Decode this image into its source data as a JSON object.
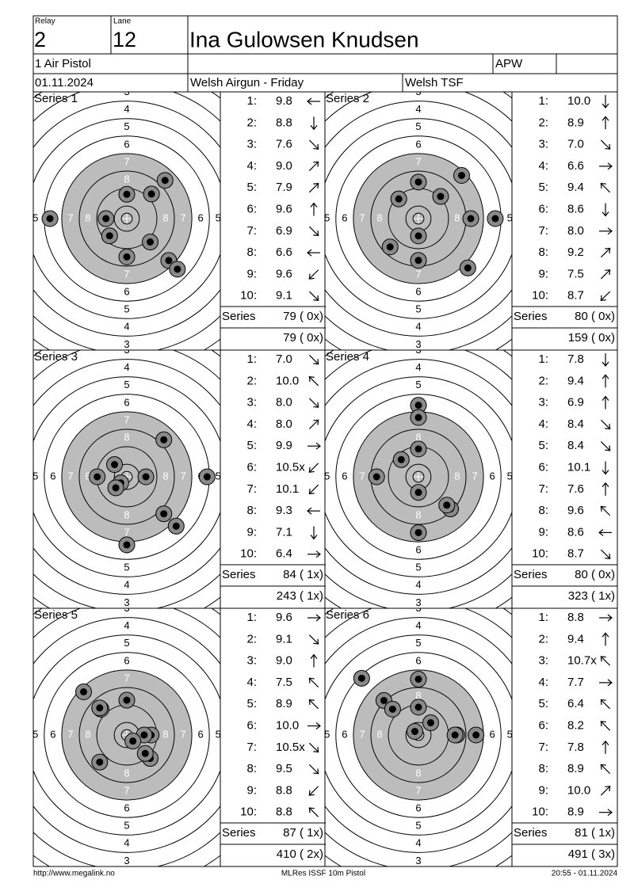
{
  "header": {
    "relay_label": "Relay",
    "relay": "2",
    "lane_label": "Lane",
    "lane": "12",
    "name": "Ina Gulowsen Knudsen",
    "event": "1 Air Pistol",
    "class": "APW",
    "date": "01.11.2024",
    "match": "Welsh Airgun - Friday",
    "club": "Welsh TSF"
  },
  "ring_labels": [
    "3",
    "4",
    "5",
    "6",
    "7",
    "8"
  ],
  "series_label": "Series",
  "series": [
    {
      "title": "Series 1",
      "total": "79 ( 0x)",
      "cumulative": "79 ( 0x)",
      "shots": [
        {
          "no": "1:",
          "score": "9.8",
          "direction": "W"
        },
        {
          "no": "2:",
          "score": "8.8",
          "direction": "S"
        },
        {
          "no": "3:",
          "score": "7.6",
          "direction": "SE"
        },
        {
          "no": "4:",
          "score": "9.0",
          "direction": "NE"
        },
        {
          "no": "5:",
          "score": "7.9",
          "direction": "NE"
        },
        {
          "no": "6:",
          "score": "9.6",
          "direction": "N"
        },
        {
          "no": "7:",
          "score": "6.9",
          "direction": "SE"
        },
        {
          "no": "8:",
          "score": "6.6",
          "direction": "W"
        },
        {
          "no": "9:",
          "score": "9.6",
          "direction": "SW"
        },
        {
          "no": "10:",
          "score": "9.1",
          "direction": "SE"
        }
      ]
    },
    {
      "title": "Series 2",
      "total": "80 ( 0x)",
      "cumulative": "159 ( 0x)",
      "shots": [
        {
          "no": "1:",
          "score": "10.0",
          "direction": "S"
        },
        {
          "no": "2:",
          "score": "8.9",
          "direction": "N"
        },
        {
          "no": "3:",
          "score": "7.0",
          "direction": "SE"
        },
        {
          "no": "4:",
          "score": "6.6",
          "direction": "E"
        },
        {
          "no": "5:",
          "score": "9.4",
          "direction": "NW"
        },
        {
          "no": "6:",
          "score": "8.6",
          "direction": "S"
        },
        {
          "no": "7:",
          "score": "8.0",
          "direction": "E"
        },
        {
          "no": "8:",
          "score": "9.2",
          "direction": "NE"
        },
        {
          "no": "9:",
          "score": "7.5",
          "direction": "NE"
        },
        {
          "no": "10:",
          "score": "8.7",
          "direction": "SW"
        }
      ]
    },
    {
      "title": "Series 3",
      "total": "84 ( 1x)",
      "cumulative": "243 ( 1x)",
      "shots": [
        {
          "no": "1:",
          "score": "7.0",
          "direction": "SE"
        },
        {
          "no": "2:",
          "score": "10.0",
          "direction": "NW"
        },
        {
          "no": "3:",
          "score": "8.0",
          "direction": "SE"
        },
        {
          "no": "4:",
          "score": "8.0",
          "direction": "NE"
        },
        {
          "no": "5:",
          "score": "9.9",
          "direction": "E"
        },
        {
          "no": "6:",
          "score": "10.5x",
          "direction": "SW"
        },
        {
          "no": "7:",
          "score": "10.1",
          "direction": "SW"
        },
        {
          "no": "8:",
          "score": "9.3",
          "direction": "W"
        },
        {
          "no": "9:",
          "score": "7.1",
          "direction": "S"
        },
        {
          "no": "10:",
          "score": "6.4",
          "direction": "E"
        }
      ]
    },
    {
      "title": "Series 4",
      "total": "80 ( 0x)",
      "cumulative": "323 ( 1x)",
      "shots": [
        {
          "no": "1:",
          "score": "7.8",
          "direction": "S"
        },
        {
          "no": "2:",
          "score": "9.4",
          "direction": "N"
        },
        {
          "no": "3:",
          "score": "6.9",
          "direction": "N"
        },
        {
          "no": "4:",
          "score": "8.4",
          "direction": "SE"
        },
        {
          "no": "5:",
          "score": "8.4",
          "direction": "SE"
        },
        {
          "no": "6:",
          "score": "10.1",
          "direction": "S"
        },
        {
          "no": "7:",
          "score": "7.6",
          "direction": "N"
        },
        {
          "no": "8:",
          "score": "9.6",
          "direction": "NW"
        },
        {
          "no": "9:",
          "score": "8.6",
          "direction": "W"
        },
        {
          "no": "10:",
          "score": "8.7",
          "direction": "SE"
        }
      ]
    },
    {
      "title": "Series 5",
      "total": "87 ( 1x)",
      "cumulative": "410 ( 2x)",
      "shots": [
        {
          "no": "1:",
          "score": "9.6",
          "direction": "E"
        },
        {
          "no": "2:",
          "score": "9.1",
          "direction": "SE"
        },
        {
          "no": "3:",
          "score": "9.0",
          "direction": "N"
        },
        {
          "no": "4:",
          "score": "7.5",
          "direction": "NW"
        },
        {
          "no": "5:",
          "score": "8.9",
          "direction": "NW"
        },
        {
          "no": "6:",
          "score": "10.0",
          "direction": "E"
        },
        {
          "no": "7:",
          "score": "10.5x",
          "direction": "SE"
        },
        {
          "no": "8:",
          "score": "9.5",
          "direction": "SE"
        },
        {
          "no": "9:",
          "score": "8.8",
          "direction": "SW"
        },
        {
          "no": "10:",
          "score": "8.8",
          "direction": "NW"
        }
      ]
    },
    {
      "title": "Series 6",
      "total": "81 ( 1x)",
      "cumulative": "491 ( 3x)",
      "shots": [
        {
          "no": "1:",
          "score": "8.8",
          "direction": "E"
        },
        {
          "no": "2:",
          "score": "9.4",
          "direction": "N"
        },
        {
          "no": "3:",
          "score": "10.7x",
          "direction": "NW"
        },
        {
          "no": "4:",
          "score": "7.7",
          "direction": "E"
        },
        {
          "no": "5:",
          "score": "6.4",
          "direction": "NW"
        },
        {
          "no": "6:",
          "score": "8.2",
          "direction": "NW"
        },
        {
          "no": "7:",
          "score": "7.8",
          "direction": "N"
        },
        {
          "no": "8:",
          "score": "8.9",
          "direction": "NW"
        },
        {
          "no": "9:",
          "score": "10.0",
          "direction": "NE"
        },
        {
          "no": "10:",
          "score": "8.9",
          "direction": "E"
        }
      ]
    }
  ],
  "footer": {
    "left": "http://www.megalink.no",
    "center": "MLRes ISSF 10m Pistol",
    "right": "20:55 - 01.11.2024"
  }
}
